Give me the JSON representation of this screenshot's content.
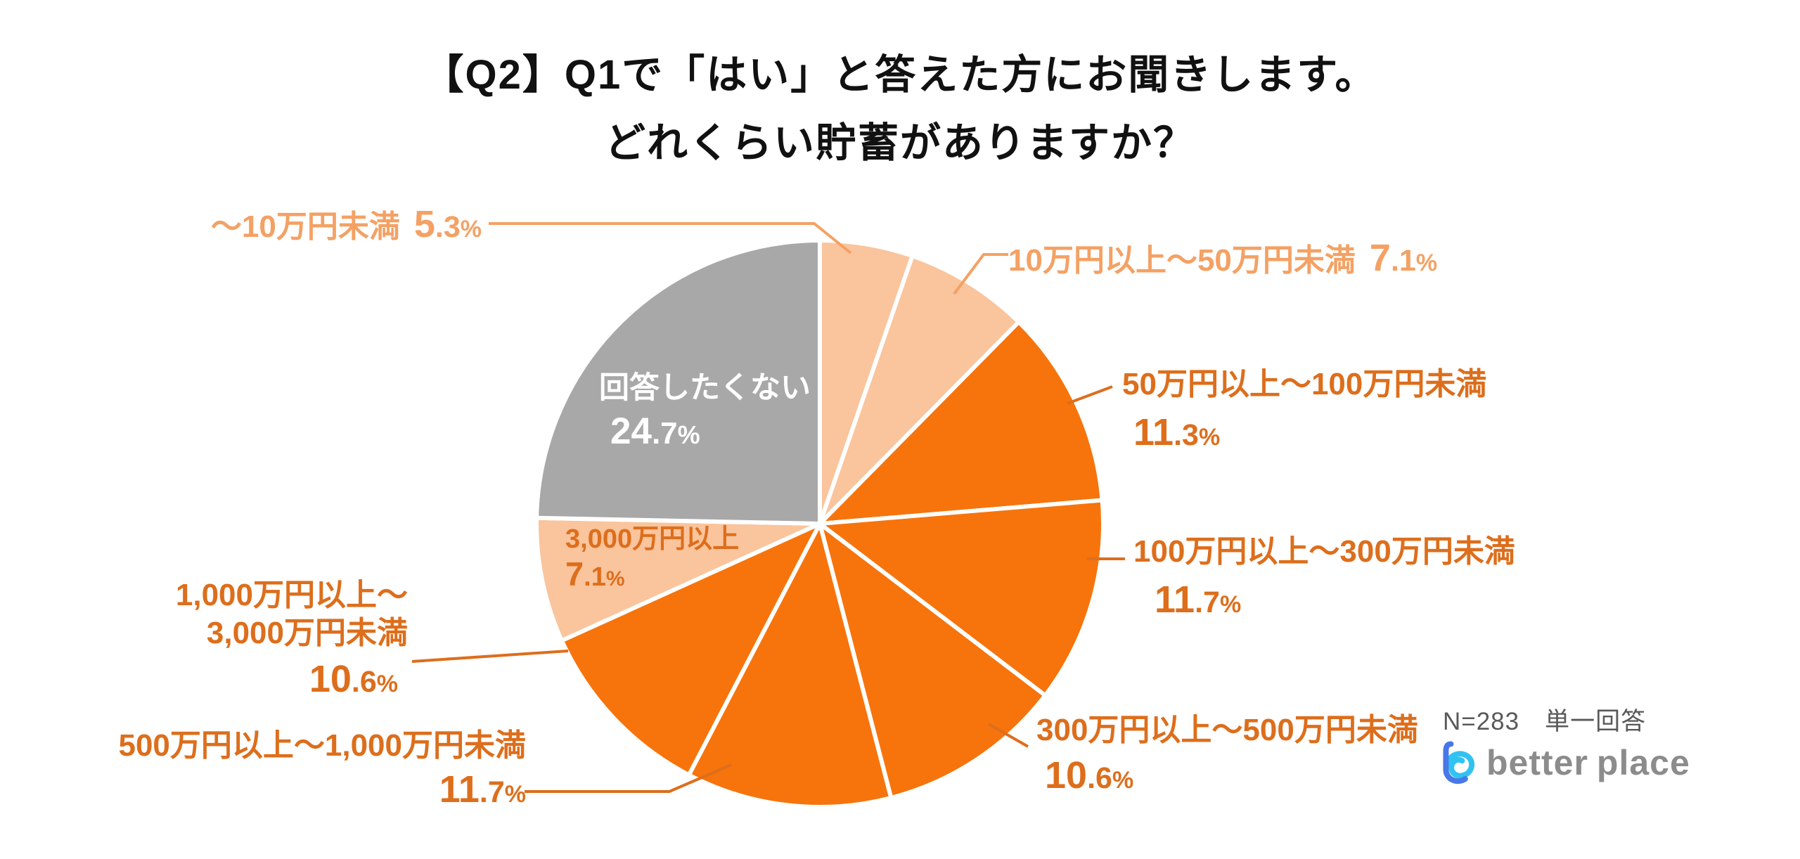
{
  "title": {
    "line1": "【Q2】Q1で「はい」と答えた方にお聞きします。",
    "line2": "どれくらい貯蓄がありますか？"
  },
  "footnote": "N=283　単一回答",
  "logo": {
    "better": "better",
    "place": "place"
  },
  "colors": {
    "orange": "#F7740C",
    "peach": "#FAC49C",
    "gray": "#A8A8A8",
    "label_dark": "#DD6E1C",
    "label_light": "#F4A164",
    "footnote_gray": "#595959",
    "logo_gray": "#8C8C8C",
    "logo_blue": "#4878E8",
    "logo_cyan": "#30C3F2",
    "slice_border": "#FFFFFF",
    "title_color": "#111111"
  },
  "chart_data": {
    "type": "pie",
    "title": "【Q2】Q1で「はい」と答えた方にお聞きします。どれくらい貯蓄がありますか？",
    "unit": "%",
    "start_angle_deg": 0,
    "direction": "clockwise",
    "legend": "none (direct labels with leader lines)",
    "sample_size": "N=283",
    "answer_type": "単一回答",
    "slices": [
      {
        "label": "～10万円未満",
        "pct": 5.3,
        "color": "peach",
        "label_color": "light",
        "label_position": "outside-top-left"
      },
      {
        "label": "10万円以上～50万円未満",
        "pct": 7.1,
        "color": "peach",
        "label_color": "light",
        "label_position": "outside-top-right"
      },
      {
        "label": "50万円以上～100万円未満",
        "pct": 11.3,
        "color": "orange",
        "label_color": "dark",
        "label_position": "outside-right"
      },
      {
        "label": "100万円以上～300万円未満",
        "pct": 11.7,
        "color": "orange",
        "label_color": "dark",
        "label_position": "outside-right"
      },
      {
        "label": "300万円以上～500万円未満",
        "pct": 10.6,
        "color": "orange",
        "label_color": "dark",
        "label_position": "outside-bottom-right"
      },
      {
        "label": "500万円以上～1,000万円未満",
        "pct": 11.7,
        "color": "orange",
        "label_color": "dark",
        "label_position": "outside-bottom-left"
      },
      {
        "label": "1,000万円以上～3,000万円未満",
        "label_lines": [
          "1,000万円以上～",
          "3,000万円未満"
        ],
        "pct": 10.6,
        "color": "orange",
        "label_color": "dark",
        "label_position": "outside-left"
      },
      {
        "label": "3,000万円以上",
        "pct": 7.1,
        "color": "peach",
        "label_color": "dark",
        "label_position": "inside"
      },
      {
        "label": "回答したくない",
        "pct": 24.7,
        "color": "gray",
        "label_color": "white",
        "label_position": "inside"
      }
    ]
  }
}
